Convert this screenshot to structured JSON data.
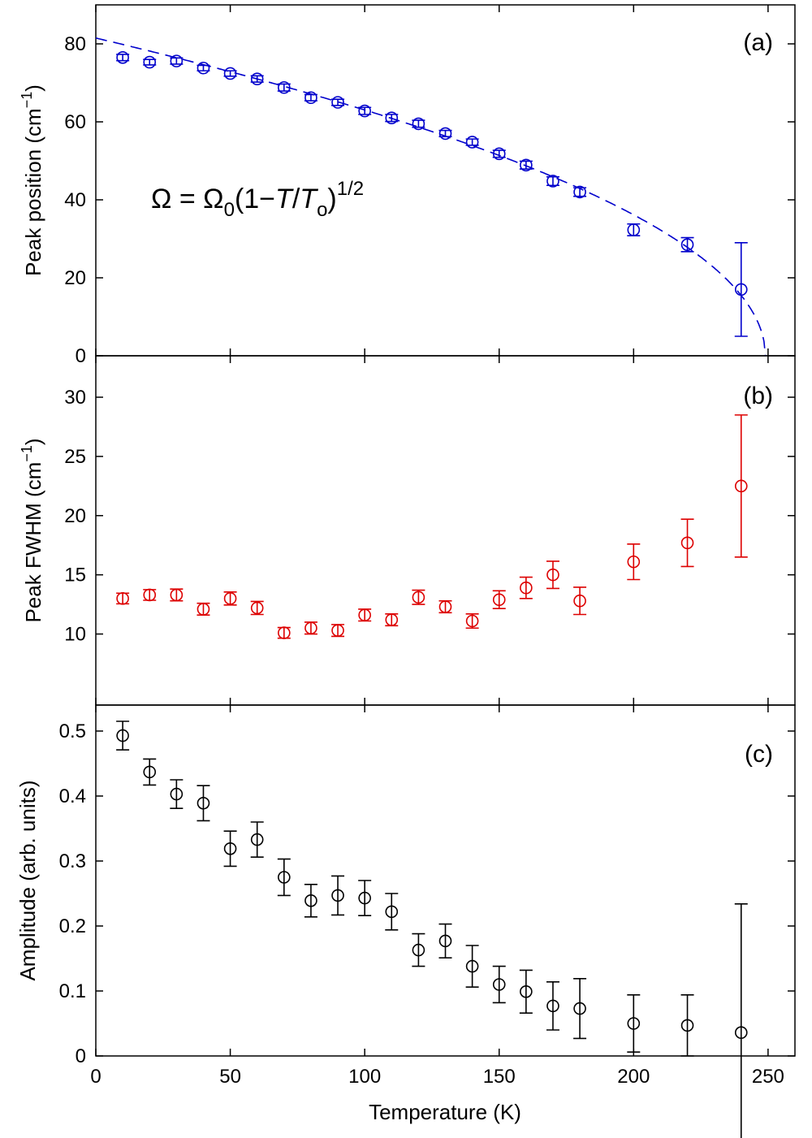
{
  "chart_data": [
    {
      "type": "scatter",
      "panel_label": "(a)",
      "ylabel": "Peak position (cm",
      "ylabel_sup": "−1",
      "ylabel_close": ")",
      "ylim": [
        0,
        90
      ],
      "yticks": [
        0,
        20,
        40,
        60,
        80
      ],
      "xlim": [
        0,
        260
      ],
      "grid": false,
      "color": "#0000cc",
      "annotation": {
        "omega": "Ω",
        "eq": " = ",
        "omega0": "Ω",
        "sub0": "0",
        "open": "(1−",
        "T": "T",
        "slash": "/",
        "To": "T",
        "subo": "o",
        "close": ")",
        "exp": "1/2"
      },
      "series": [
        {
          "marker": "open-circle",
          "x": [
            10,
            20,
            30,
            40,
            50,
            60,
            70,
            80,
            90,
            100,
            110,
            120,
            130,
            140,
            150,
            160,
            170,
            180,
            200,
            220,
            240
          ],
          "y": [
            76.5,
            75.3,
            75.6,
            73.8,
            72.4,
            71.0,
            68.8,
            66.2,
            65.0,
            62.8,
            61.0,
            59.5,
            57.0,
            54.8,
            51.8,
            48.9,
            44.8,
            42.0,
            32.3,
            28.5,
            17.0
          ],
          "err": [
            0.8,
            0.7,
            0.8,
            0.7,
            0.7,
            0.8,
            0.9,
            0.8,
            0.8,
            0.9,
            0.9,
            0.9,
            0.8,
            0.8,
            0.9,
            1.0,
            1.1,
            1.1,
            1.5,
            1.8,
            12.0
          ]
        }
      ],
      "fit": {
        "style": "dashed",
        "omega0": 81.5,
        "T0": 249
      }
    },
    {
      "type": "scatter",
      "panel_label": "(b)",
      "ylabel": "Peak FWHM (cm",
      "ylabel_sup": "−1",
      "ylabel_close": ")",
      "ylim": [
        4,
        33.5
      ],
      "yticks": [
        10,
        15,
        20,
        25,
        30
      ],
      "xlim": [
        0,
        260
      ],
      "grid": false,
      "color": "#dd0000",
      "series": [
        {
          "marker": "open-circle",
          "x": [
            10,
            20,
            30,
            40,
            50,
            60,
            70,
            80,
            90,
            100,
            110,
            120,
            130,
            140,
            150,
            160,
            170,
            180,
            200,
            220,
            240
          ],
          "y": [
            13.0,
            13.3,
            13.3,
            12.1,
            13.0,
            12.2,
            10.1,
            10.5,
            10.3,
            11.6,
            11.2,
            13.1,
            12.3,
            11.1,
            12.9,
            13.9,
            15.0,
            12.8,
            16.1,
            17.7,
            22.5
          ],
          "err": [
            0.45,
            0.45,
            0.5,
            0.5,
            0.55,
            0.55,
            0.45,
            0.5,
            0.5,
            0.5,
            0.5,
            0.6,
            0.5,
            0.6,
            0.75,
            0.9,
            1.15,
            1.15,
            1.5,
            2.0,
            6.0
          ]
        }
      ]
    },
    {
      "type": "scatter",
      "panel_label": "(c)",
      "ylabel": "Amplitude (arb. units)",
      "xlabel": "Temperature (K)",
      "ylim": [
        0,
        0.54
      ],
      "yticks": [
        0,
        0.1,
        0.2,
        0.3,
        0.4,
        0.5
      ],
      "ytick_labels": [
        "0",
        "0.1",
        "0.2",
        "0.3",
        "0.4",
        "0.5"
      ],
      "xlim": [
        0,
        260
      ],
      "xticks": [
        0,
        50,
        100,
        150,
        200,
        250
      ],
      "grid": false,
      "color": "#000000",
      "series": [
        {
          "marker": "open-circle",
          "x": [
            10,
            20,
            30,
            40,
            50,
            60,
            70,
            80,
            90,
            100,
            110,
            120,
            130,
            140,
            150,
            160,
            170,
            180,
            200,
            220,
            240
          ],
          "y": [
            0.493,
            0.437,
            0.403,
            0.389,
            0.319,
            0.333,
            0.275,
            0.239,
            0.247,
            0.243,
            0.222,
            0.163,
            0.177,
            0.138,
            0.11,
            0.099,
            0.077,
            0.073,
            0.05,
            0.047,
            0.036
          ],
          "err": [
            0.022,
            0.02,
            0.022,
            0.027,
            0.027,
            0.027,
            0.028,
            0.025,
            0.03,
            0.027,
            0.028,
            0.025,
            0.026,
            0.032,
            0.028,
            0.033,
            0.037,
            0.046,
            0.044,
            0.047,
            0.198
          ]
        }
      ]
    }
  ]
}
